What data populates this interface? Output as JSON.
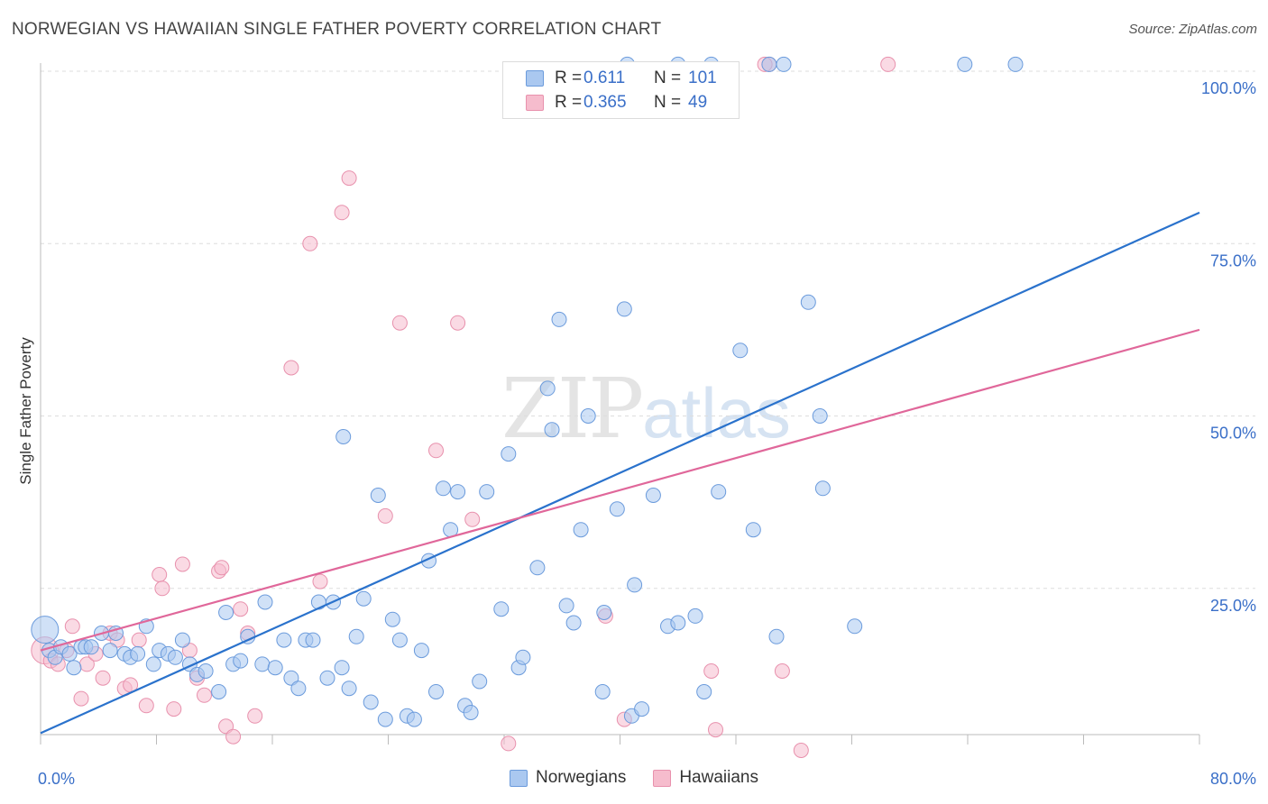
{
  "title": "NORWEGIAN VS HAWAIIAN SINGLE FATHER POVERTY CORRELATION CHART",
  "source": "Source: ZipAtlas.com",
  "watermark": {
    "zip": "ZIP",
    "atlas": "atlas"
  },
  "colors": {
    "norwegians_fill": "#aac8f0",
    "norwegians_stroke": "#6b9bdc",
    "norwegians_line": "#2a72cc",
    "hawaiians_fill": "#f6bccd",
    "hawaiians_stroke": "#e891ad",
    "hawaiians_line": "#e0679a",
    "tick_label": "#3a6fc8",
    "grid": "#dddddd"
  },
  "legend_top": [
    {
      "swatch": "norwegians",
      "r_label": "R =",
      "r_value": "0.611",
      "n_label": "N =",
      "n_value": "101"
    },
    {
      "swatch": "hawaiians",
      "r_label": "R =",
      "r_value": "0.365",
      "n_label": "N =",
      "n_value": "49"
    }
  ],
  "legend_bottom": [
    {
      "swatch": "norwegians",
      "label": "Norwegians"
    },
    {
      "swatch": "hawaiians",
      "label": "Hawaiians"
    }
  ],
  "chart_data": {
    "type": "scatter",
    "title": "NORWEGIAN VS HAWAIIAN SINGLE FATHER POVERTY CORRELATION CHART",
    "xlabel": "",
    "ylabel": "Single Father Poverty",
    "xlim": [
      0,
      80
    ],
    "ylim": [
      0,
      102
    ],
    "x_tick_labels": [
      {
        "value": 0,
        "label": "0.0%"
      },
      {
        "value": 80,
        "label": "80.0%"
      }
    ],
    "y_tick_labels": [
      {
        "value": 25,
        "label": "25.0%"
      },
      {
        "value": 50,
        "label": "50.0%"
      },
      {
        "value": 75,
        "label": "75.0%"
      },
      {
        "value": 100,
        "label": "100.0%"
      }
    ],
    "grid": "horizontal dashed",
    "legend": "top-center",
    "series": [
      {
        "name": "Norwegians",
        "r": 0.611,
        "n": 101,
        "trend": [
          [
            0,
            4.0
          ],
          [
            80,
            79.5
          ]
        ],
        "points": [
          [
            0.3,
            19.0
          ],
          [
            0.6,
            16.0
          ],
          [
            1.0,
            15.0
          ],
          [
            1.4,
            16.5
          ],
          [
            2.0,
            15.5
          ],
          [
            2.3,
            13.5
          ],
          [
            2.8,
            16.5
          ],
          [
            3.1,
            16.5
          ],
          [
            3.5,
            16.5
          ],
          [
            4.2,
            18.5
          ],
          [
            4.8,
            16.0
          ],
          [
            5.2,
            18.5
          ],
          [
            5.8,
            15.5
          ],
          [
            6.2,
            15.0
          ],
          [
            6.7,
            15.5
          ],
          [
            7.3,
            19.5
          ],
          [
            7.8,
            14.0
          ],
          [
            8.2,
            16.0
          ],
          [
            8.8,
            15.5
          ],
          [
            9.3,
            15.0
          ],
          [
            9.8,
            17.5
          ],
          [
            10.3,
            14.0
          ],
          [
            10.8,
            12.5
          ],
          [
            11.4,
            13.0
          ],
          [
            12.3,
            10.0
          ],
          [
            12.8,
            21.5
          ],
          [
            13.3,
            14.0
          ],
          [
            13.8,
            14.5
          ],
          [
            14.3,
            18.0
          ],
          [
            15.3,
            14.0
          ],
          [
            15.5,
            23.0
          ],
          [
            16.2,
            13.5
          ],
          [
            16.8,
            17.5
          ],
          [
            17.3,
            12.0
          ],
          [
            17.8,
            10.5
          ],
          [
            18.3,
            17.5
          ],
          [
            18.8,
            17.5
          ],
          [
            19.2,
            23.0
          ],
          [
            19.8,
            12.0
          ],
          [
            20.2,
            23.0
          ],
          [
            20.8,
            13.5
          ],
          [
            20.9,
            47.0
          ],
          [
            21.3,
            10.5
          ],
          [
            21.8,
            18.0
          ],
          [
            22.3,
            23.5
          ],
          [
            22.8,
            8.5
          ],
          [
            23.3,
            38.5
          ],
          [
            23.8,
            6.0
          ],
          [
            24.3,
            20.5
          ],
          [
            24.8,
            17.5
          ],
          [
            25.3,
            6.5
          ],
          [
            25.8,
            6.0
          ],
          [
            26.3,
            16.0
          ],
          [
            26.8,
            29.0
          ],
          [
            27.3,
            10.0
          ],
          [
            27.8,
            39.5
          ],
          [
            28.3,
            33.5
          ],
          [
            28.8,
            39.0
          ],
          [
            29.3,
            8.0
          ],
          [
            29.7,
            7.0
          ],
          [
            30.3,
            11.5
          ],
          [
            30.8,
            39.0
          ],
          [
            31.8,
            22.0
          ],
          [
            32.3,
            44.5
          ],
          [
            33.0,
            13.5
          ],
          [
            33.3,
            15.0
          ],
          [
            34.3,
            28.0
          ],
          [
            35.0,
            54.0
          ],
          [
            35.3,
            48.0
          ],
          [
            35.8,
            64.0
          ],
          [
            36.3,
            22.5
          ],
          [
            36.8,
            20.0
          ],
          [
            37.3,
            33.5
          ],
          [
            37.8,
            50.0
          ],
          [
            38.8,
            10.0
          ],
          [
            38.9,
            21.5
          ],
          [
            39.8,
            36.5
          ],
          [
            40.3,
            65.5
          ],
          [
            40.8,
            6.5
          ],
          [
            41.0,
            25.5
          ],
          [
            41.5,
            7.5
          ],
          [
            42.3,
            38.5
          ],
          [
            43.3,
            19.5
          ],
          [
            44.0,
            20.0
          ],
          [
            45.2,
            21.0
          ],
          [
            45.8,
            10.0
          ],
          [
            46.3,
            101.0
          ],
          [
            46.8,
            39.0
          ],
          [
            48.3,
            59.5
          ],
          [
            49.2,
            33.5
          ],
          [
            50.3,
            101.0
          ],
          [
            50.8,
            18.0
          ],
          [
            51.3,
            101.0
          ],
          [
            53.0,
            66.5
          ],
          [
            53.8,
            50.0
          ],
          [
            54.0,
            39.5
          ],
          [
            56.2,
            19.5
          ],
          [
            63.8,
            101.0
          ],
          [
            67.3,
            101.0
          ],
          [
            40.5,
            101.0
          ],
          [
            44.0,
            101.0
          ]
        ]
      },
      {
        "name": "Hawaiians",
        "r": 0.365,
        "n": 49,
        "trend": [
          [
            0,
            16.0
          ],
          [
            80,
            62.5
          ]
        ],
        "points": [
          [
            0.3,
            16.0
          ],
          [
            0.7,
            14.5
          ],
          [
            1.2,
            14.0
          ],
          [
            1.8,
            16.0
          ],
          [
            2.2,
            19.5
          ],
          [
            2.8,
            9.0
          ],
          [
            3.2,
            14.0
          ],
          [
            3.8,
            15.5
          ],
          [
            4.3,
            12.0
          ],
          [
            4.8,
            18.5
          ],
          [
            5.3,
            17.5
          ],
          [
            5.8,
            10.5
          ],
          [
            6.2,
            11.0
          ],
          [
            6.8,
            17.5
          ],
          [
            7.3,
            8.0
          ],
          [
            8.2,
            27.0
          ],
          [
            8.4,
            25.0
          ],
          [
            9.2,
            7.5
          ],
          [
            9.8,
            28.5
          ],
          [
            10.3,
            16.0
          ],
          [
            10.8,
            12.0
          ],
          [
            11.3,
            9.5
          ],
          [
            12.3,
            27.5
          ],
          [
            12.5,
            28.0
          ],
          [
            12.8,
            5.0
          ],
          [
            13.3,
            3.5
          ],
          [
            13.8,
            22.0
          ],
          [
            14.3,
            18.5
          ],
          [
            14.8,
            6.5
          ],
          [
            17.3,
            57.0
          ],
          [
            18.6,
            75.0
          ],
          [
            19.3,
            26.0
          ],
          [
            20.8,
            79.5
          ],
          [
            21.3,
            84.5
          ],
          [
            23.8,
            35.5
          ],
          [
            24.8,
            63.5
          ],
          [
            27.3,
            45.0
          ],
          [
            28.8,
            63.5
          ],
          [
            29.8,
            35.0
          ],
          [
            32.3,
            2.5
          ],
          [
            39.0,
            21.0
          ],
          [
            40.3,
            6.0
          ],
          [
            46.3,
            13.0
          ],
          [
            46.6,
            4.5
          ],
          [
            51.2,
            13.0
          ],
          [
            52.5,
            1.5
          ],
          [
            50.3,
            101.0
          ],
          [
            58.5,
            101.0
          ],
          [
            50.0,
            101.0
          ]
        ]
      }
    ]
  }
}
